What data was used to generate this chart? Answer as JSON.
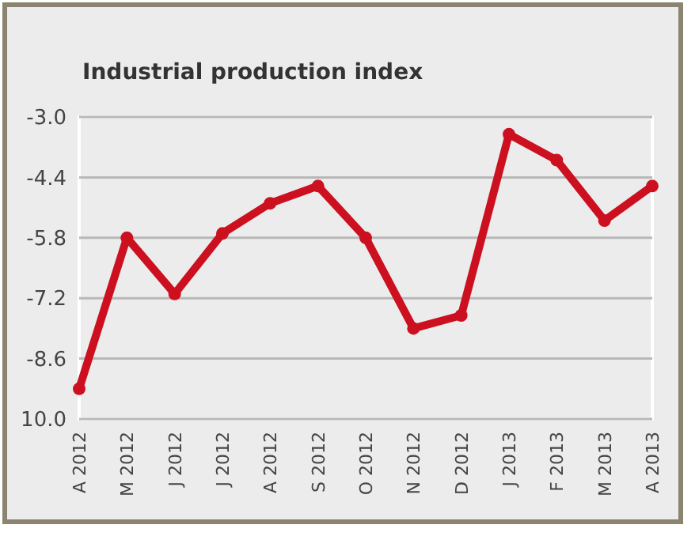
{
  "chart_data": {
    "type": "line",
    "title": "Industrial production index",
    "categories": [
      "A 2012",
      "M 2012",
      "J 2012",
      "J 2012",
      "A 2012",
      "S 2012",
      "O 2012",
      "N 2012",
      "D 2012",
      "J 2013",
      "F 2013",
      "M 2013",
      "A 2013"
    ],
    "series": [
      {
        "color": "#cc1020",
        "values": [
          -9.3,
          -5.8,
          -7.1,
          -5.7,
          -5.0,
          -4.6,
          -5.8,
          -7.9,
          -7.6,
          -3.4,
          -4.0,
          -5.4,
          -4.6
        ]
      }
    ],
    "ylim": [
      -10.0,
      -3.0
    ],
    "yticks": [
      {
        "value": -10.0,
        "label": "10.0"
      },
      {
        "value": -8.6,
        "label": "-8.6"
      },
      {
        "value": -7.2,
        "label": "-7.2"
      },
      {
        "value": -5.8,
        "label": "-5.8"
      },
      {
        "value": -4.4,
        "label": "-4.4"
      },
      {
        "value": -3.0,
        "label": "-3.0"
      }
    ],
    "grid": "y",
    "marker": "circle",
    "line_style": "solid"
  }
}
